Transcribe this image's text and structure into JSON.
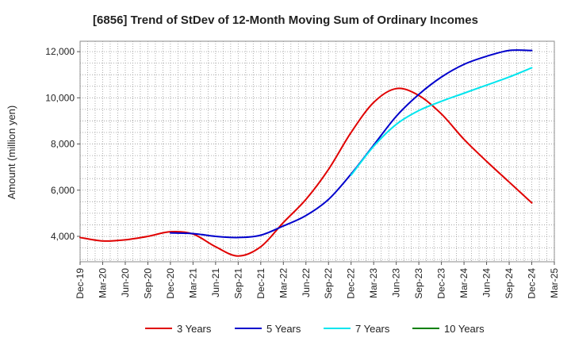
{
  "chart_data": {
    "type": "line",
    "title": "[6856]  Trend of StDev of 12-Month Moving Sum of Ordinary Incomes",
    "xlabel": "",
    "ylabel": "Amount (million yen)",
    "x_ticks": [
      "Dec-19",
      "Mar-20",
      "Jun-20",
      "Sep-20",
      "Dec-20",
      "Mar-21",
      "Jun-21",
      "Sep-21",
      "Dec-21",
      "Mar-22",
      "Jun-22",
      "Sep-22",
      "Dec-22",
      "Mar-23",
      "Jun-23",
      "Sep-23",
      "Dec-23",
      "Mar-24",
      "Jun-24",
      "Sep-24",
      "Dec-24",
      "Mar-25"
    ],
    "y_ticks": [
      4000,
      6000,
      8000,
      10000,
      12000
    ],
    "y_tick_labels": [
      "4,000",
      "6,000",
      "8,000",
      "10,000",
      "12,000"
    ],
    "ylim": [
      2900,
      12450
    ],
    "grid": true,
    "series": [
      {
        "name": "3 Years",
        "color": "#e00000",
        "x": [
          "Dec-19",
          "Mar-20",
          "Jun-20",
          "Sep-20",
          "Dec-20",
          "Mar-21",
          "Jun-21",
          "Sep-21",
          "Dec-21",
          "Mar-22",
          "Jun-22",
          "Sep-22",
          "Dec-22",
          "Mar-23",
          "Jun-23",
          "Sep-23",
          "Dec-23",
          "Mar-24",
          "Jun-24",
          "Sep-24",
          "Dec-24"
        ],
        "values": [
          3950,
          3800,
          3850,
          4000,
          4200,
          4100,
          3550,
          3150,
          3550,
          4600,
          5600,
          6900,
          8500,
          9800,
          10400,
          10100,
          9300,
          8200,
          7250,
          6350,
          5450
        ]
      },
      {
        "name": "5 Years",
        "color": "#0000cc",
        "x": [
          "Dec-20",
          "Mar-21",
          "Jun-21",
          "Sep-21",
          "Dec-21",
          "Mar-22",
          "Jun-22",
          "Sep-22",
          "Dec-22",
          "Mar-23",
          "Jun-23",
          "Sep-23",
          "Dec-23",
          "Mar-24",
          "Jun-24",
          "Sep-24",
          "Dec-24"
        ],
        "values": [
          4150,
          4120,
          4000,
          3950,
          4050,
          4450,
          4900,
          5600,
          6700,
          7950,
          9200,
          10150,
          10900,
          11450,
          11800,
          12050,
          12050
        ]
      },
      {
        "name": "7 Years",
        "color": "#00e5ee",
        "x": [
          "Dec-22",
          "Mar-23",
          "Jun-23",
          "Sep-23",
          "Dec-23",
          "Mar-24",
          "Jun-24",
          "Sep-24",
          "Dec-24"
        ],
        "values": [
          6650,
          7900,
          8850,
          9450,
          9850,
          10200,
          10550,
          10900,
          11300
        ]
      },
      {
        "name": "10 Years",
        "color": "#008000",
        "x": [],
        "values": []
      }
    ],
    "legend_position": "bottom"
  }
}
